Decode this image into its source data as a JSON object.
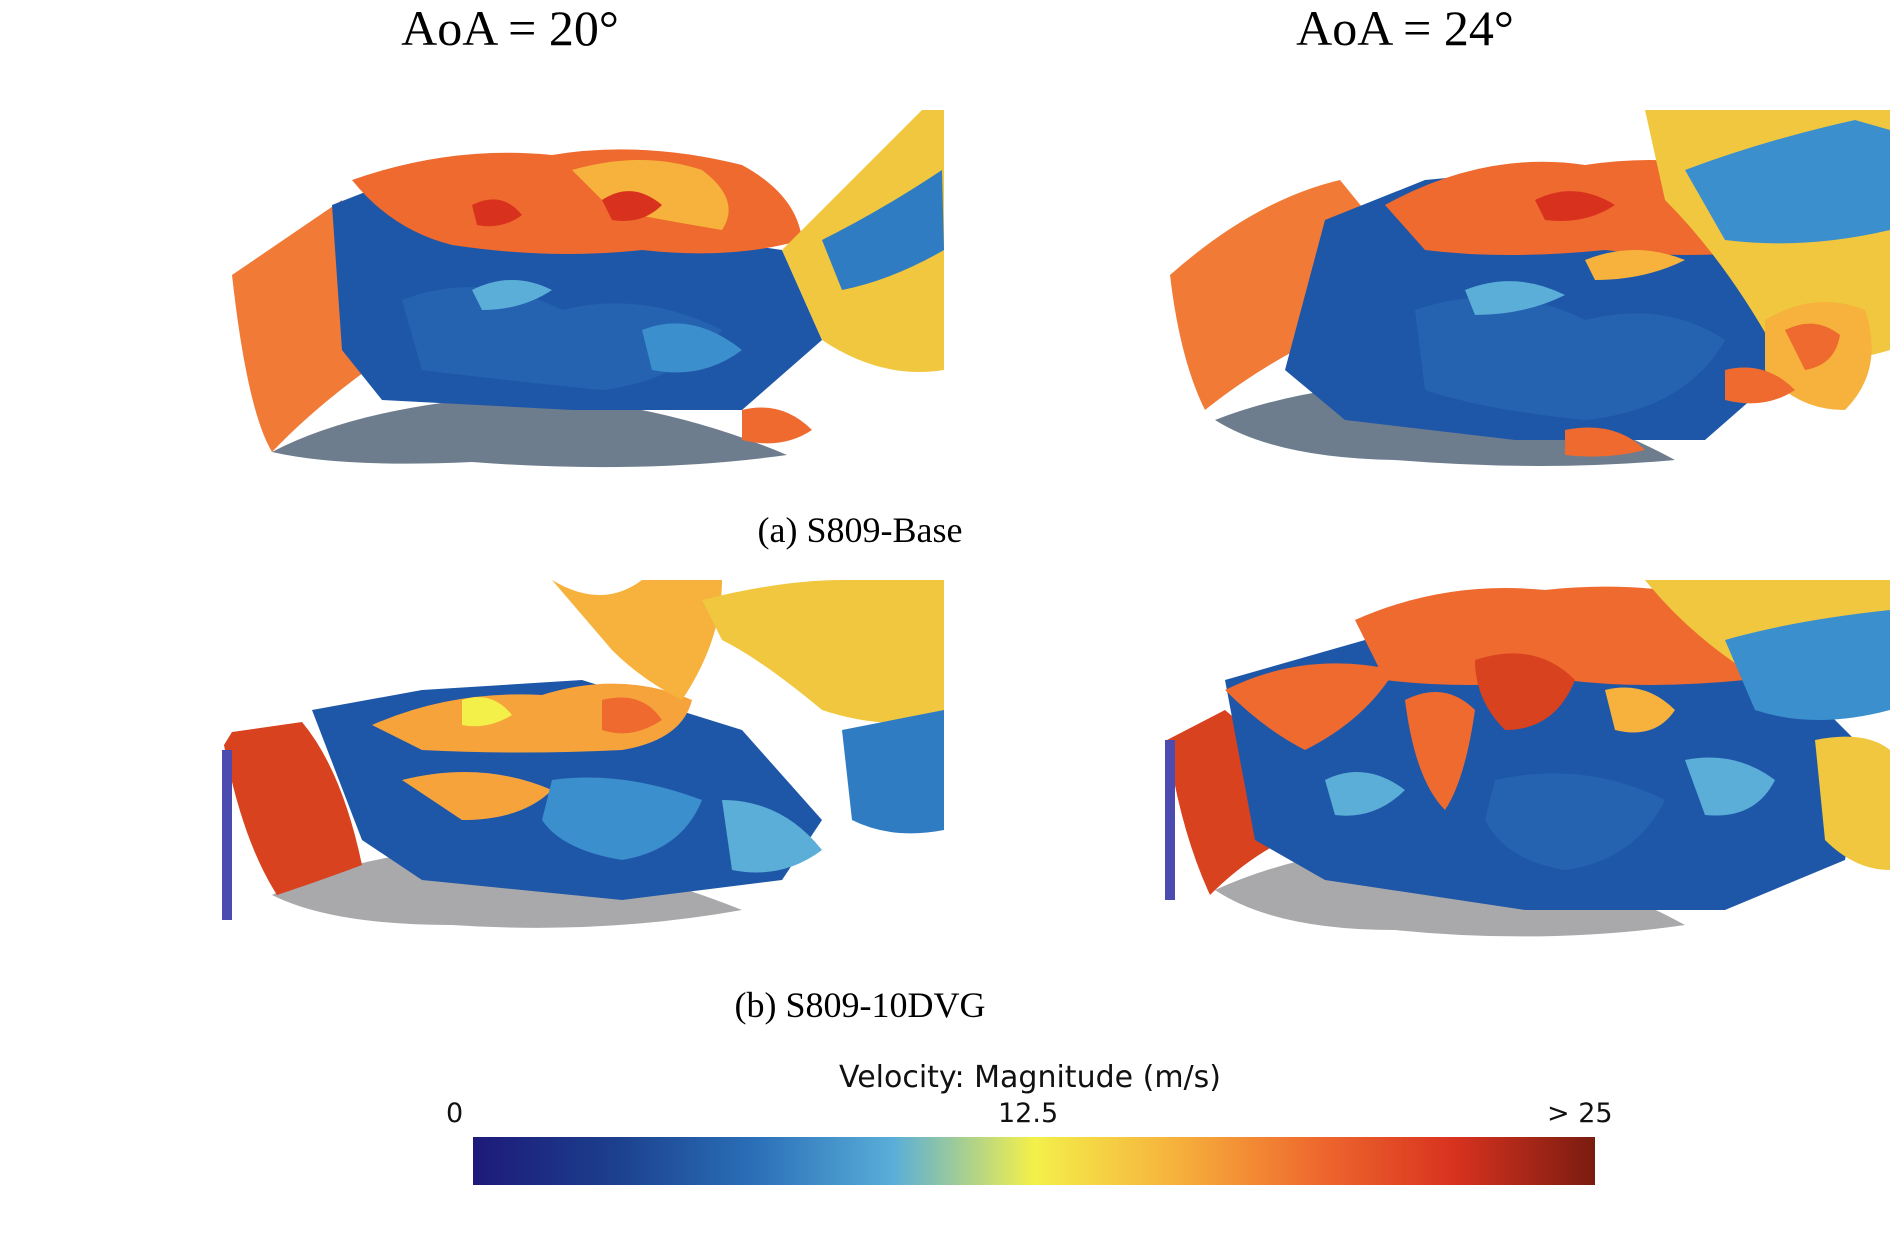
{
  "columns": {
    "left_title": "AoA = 20°",
    "right_title": "AoA = 24°"
  },
  "rows": {
    "a_caption": "(a) S809-Base",
    "b_caption": "(b) S809-10DVG"
  },
  "panels": [
    {
      "id": "base-aoa20",
      "case": "S809-Base",
      "aoa": "AoA = 20°",
      "content": "iso-surface vortex structures over S809 airfoil, colored by velocity magnitude"
    },
    {
      "id": "base-aoa24",
      "case": "S809-Base",
      "aoa": "AoA = 24°",
      "content": "iso-surface vortex structures over S809 airfoil, colored by velocity magnitude"
    },
    {
      "id": "dvg-aoa20",
      "case": "S809-10DVG",
      "aoa": "AoA = 20°",
      "content": "iso-surface vortex structures over S809 airfoil with vortex generators, colored by velocity magnitude"
    },
    {
      "id": "dvg-aoa24",
      "case": "S809-10DVG",
      "aoa": "AoA = 24°",
      "content": "iso-surface vortex structures over S809 airfoil with vortex generators, colored by velocity magnitude"
    }
  ],
  "colorbar": {
    "title": "Velocity: Magnitude (m/s)",
    "min_label": "0",
    "mid_label": "12.5",
    "max_label": "> 25",
    "stops": [
      "#1d1a7a",
      "#1c3f8c",
      "#2a6fb8",
      "#5aaed8",
      "#f4f04a",
      "#f6b23c",
      "#ef6a2e",
      "#d8321f",
      "#7a1c10"
    ]
  }
}
